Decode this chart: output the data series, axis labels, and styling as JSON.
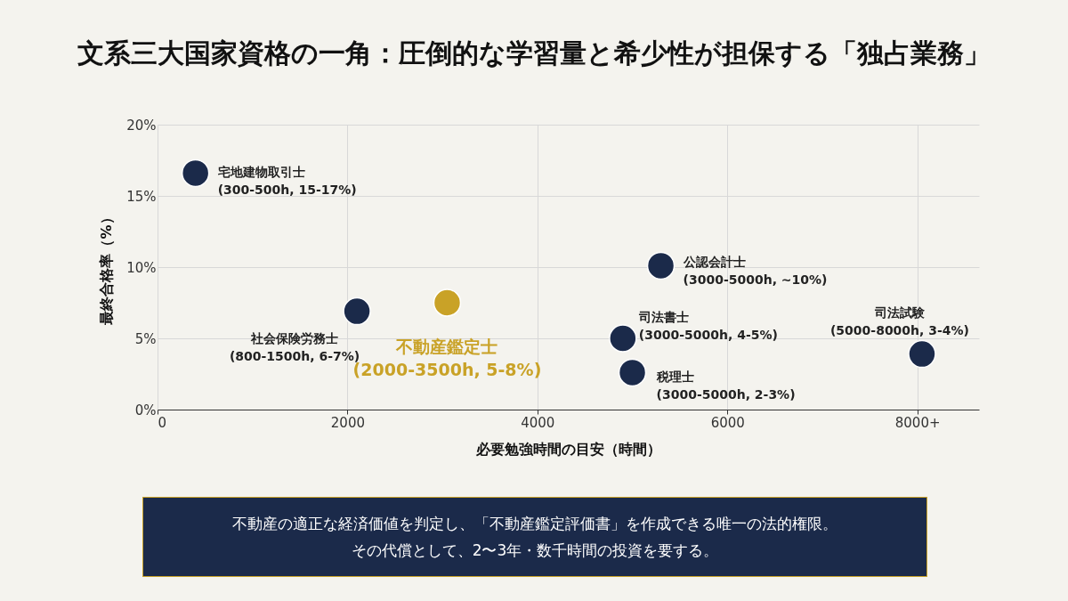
{
  "chart_data": {
    "type": "scatter",
    "title": "文系三大国家資格の一角：圧倒的な学習量と希少性が担保する「独占業務」",
    "xlabel": "必要勉強時間の目安（時間）",
    "ylabel": "最終合格率（%）",
    "x": [
      400,
      2100,
      3050,
      5300,
      4900,
      5000,
      8050
    ],
    "values": [
      16.6,
      6.9,
      7.5,
      10.1,
      5.0,
      2.6,
      3.9
    ],
    "colors": [
      "#1b2a4a",
      "#1b2a4a",
      "#c9a227",
      "#1b2a4a",
      "#1b2a4a",
      "#1b2a4a",
      "#1b2a4a"
    ],
    "xlim": [
      0,
      8650
    ],
    "ylim": [
      0,
      20
    ],
    "xticks": [
      0,
      2000,
      4000,
      6000,
      {
        "value": 8000,
        "label": "8000+"
      }
    ],
    "yticks": [
      {
        "value": 0,
        "label": "0%"
      },
      {
        "value": 5,
        "label": "5%"
      },
      {
        "value": 10,
        "label": "10%"
      },
      {
        "value": 15,
        "label": "15%"
      },
      {
        "value": 20,
        "label": "20%"
      }
    ],
    "grid": true,
    "marker": "circle",
    "annotations": [
      {
        "text": "宅地建物取引士\n(300-500h, 15-17%)",
        "x": 400,
        "y": 16.6
      },
      {
        "text": "社会保険労務士\n(800-1500h, 6-7%)",
        "x": 2100,
        "y": 6.9
      },
      {
        "text": "不動産鑑定士\n(2000-3500h, 5-8%)",
        "x": 3050,
        "y": 7.5
      },
      {
        "text": "公認会計士\n(3000-5000h, ~10%)",
        "x": 5300,
        "y": 10.1
      },
      {
        "text": "司法書士\n(3000-5000h, 4-5%)",
        "x": 4900,
        "y": 5.0
      },
      {
        "text": "税理士\n(3000-5000h, 2-3%)",
        "x": 5000,
        "y": 2.6
      },
      {
        "text": "司法試験\n(5000-8000h, 3-4%)",
        "x": 8050,
        "y": 3.9
      },
      "不動産の適正な経済価値を判定し、「不動産鑑定評価書」を作成できる唯一の法的権限。",
      "その代償として、2〜3年・数千時間の投資を要する。"
    ]
  }
}
